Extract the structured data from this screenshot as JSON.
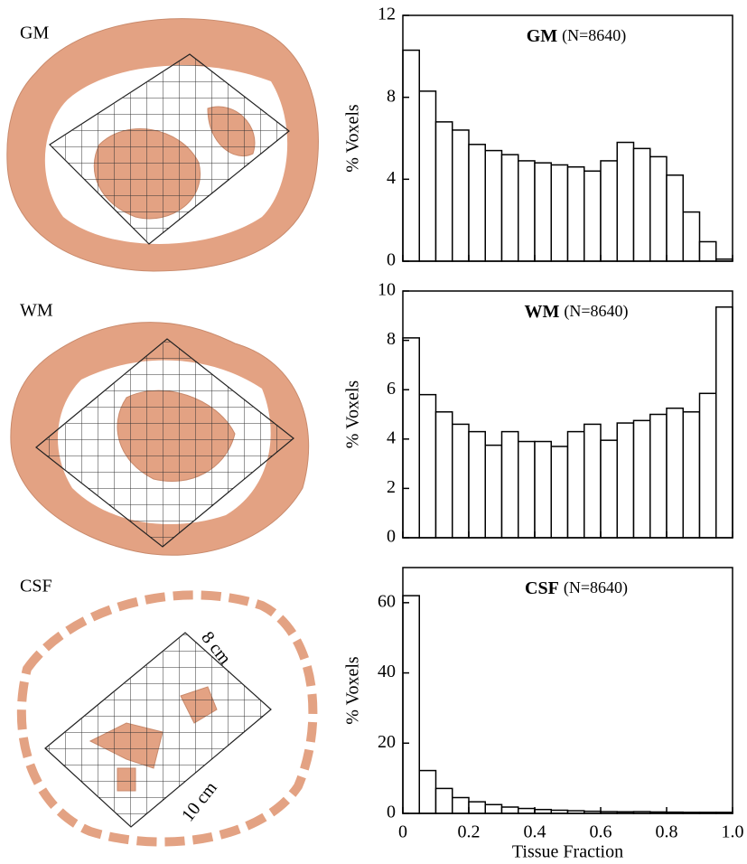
{
  "images": [
    {
      "label": "GM"
    },
    {
      "label": "WM"
    },
    {
      "label": "CSF",
      "annotations": [
        "8 cm",
        "10 cm"
      ]
    }
  ],
  "chart_data": [
    {
      "type": "histogram",
      "title": "GM",
      "subtitle": "(N=8640)",
      "ylabel": "% Voxels",
      "bins": [
        0,
        0.05,
        0.1,
        0.15,
        0.2,
        0.25,
        0.3,
        0.35,
        0.4,
        0.45,
        0.5,
        0.55,
        0.6,
        0.65,
        0.7,
        0.75,
        0.8,
        0.85,
        0.9,
        0.95,
        1
      ],
      "values": [
        10.3,
        8.3,
        6.8,
        6.4,
        5.7,
        5.4,
        5.2,
        4.9,
        4.8,
        4.7,
        4.6,
        4.4,
        4.9,
        5.8,
        5.5,
        5.1,
        4.2,
        2.4,
        0.95,
        0.1
      ],
      "xlim": [
        0,
        1
      ],
      "xticks": [
        0,
        0.2,
        0.4,
        0.6,
        0.8,
        1
      ],
      "xtick_labels": false,
      "ylim": [
        0,
        12
      ],
      "yticks": [
        0,
        4,
        8,
        12
      ],
      "color": "#ffffff"
    },
    {
      "type": "histogram",
      "title": "WM",
      "subtitle": "(N=8640)",
      "ylabel": "% Voxels",
      "bins": [
        0,
        0.05,
        0.1,
        0.15,
        0.2,
        0.25,
        0.3,
        0.35,
        0.4,
        0.45,
        0.5,
        0.55,
        0.6,
        0.65,
        0.7,
        0.75,
        0.8,
        0.85,
        0.9,
        0.95,
        1
      ],
      "values": [
        8.1,
        5.8,
        5.1,
        4.6,
        4.3,
        3.75,
        4.3,
        3.9,
        3.9,
        3.7,
        4.3,
        4.6,
        3.95,
        4.65,
        4.75,
        5.0,
        5.25,
        5.1,
        5.85,
        9.35
      ],
      "xlim": [
        0,
        1
      ],
      "xticks": [
        0,
        0.2,
        0.4,
        0.6,
        0.8,
        1
      ],
      "xtick_labels": false,
      "ylim": [
        0,
        10
      ],
      "yticks": [
        0,
        2,
        4,
        6,
        8,
        10
      ],
      "color": "#ffffff"
    },
    {
      "type": "histogram",
      "title": "CSF",
      "subtitle": "(N=8640)",
      "ylabel": "% Voxels",
      "xlabel": "Tissue Fraction",
      "bins": [
        0,
        0.05,
        0.1,
        0.15,
        0.2,
        0.25,
        0.3,
        0.35,
        0.4,
        0.45,
        0.5,
        0.55,
        0.6,
        0.65,
        0.7,
        0.75,
        0.8,
        0.85,
        0.9,
        0.95,
        1
      ],
      "values": [
        62,
        12.2,
        7.1,
        4.5,
        3.3,
        2.5,
        1.8,
        1.4,
        1.1,
        0.9,
        0.75,
        0.6,
        0.5,
        0.45,
        0.5,
        0.4,
        0.35,
        0.3,
        0.3,
        0.3
      ],
      "xlim": [
        0,
        1
      ],
      "xticks": [
        0,
        0.2,
        0.4,
        0.6,
        0.8,
        {
          "value": 1,
          "label": "1.0"
        }
      ],
      "xtick_labels": true,
      "ylim": [
        0,
        70
      ],
      "yticks": [
        0,
        20,
        40,
        60
      ],
      "color": "#ffffff"
    }
  ]
}
